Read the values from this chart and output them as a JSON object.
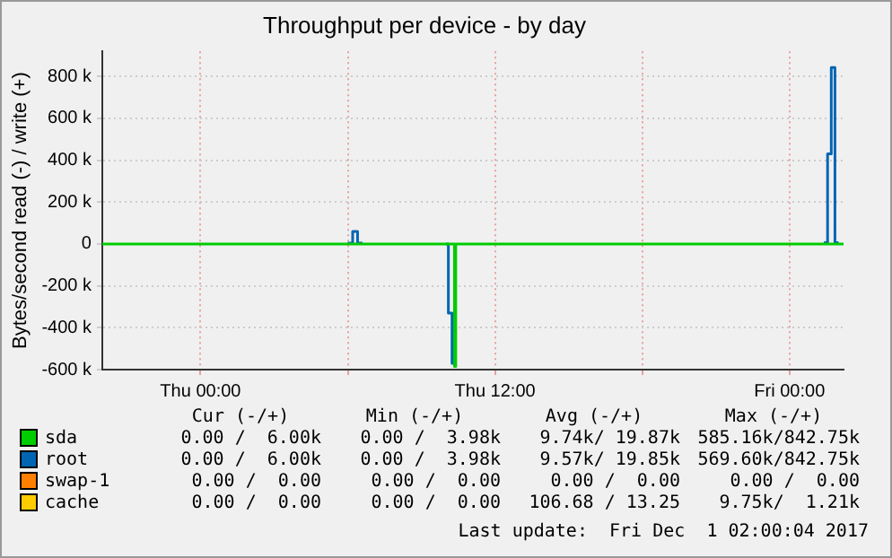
{
  "chart_data": {
    "type": "step",
    "title": "Throughput per device - by day",
    "ylabel": "Bytes/second read (-) / write (+)",
    "xlim": [
      "2017-11-29T20:00",
      "2017-12-01T02:12"
    ],
    "xticks": [
      {
        "value": "2017-11-30T00:00",
        "label": "Thu 00:00"
      },
      {
        "value": "2017-11-30T06:00",
        "label": null
      },
      {
        "value": "2017-11-30T12:00",
        "label": "Thu 12:00"
      },
      {
        "value": "2017-11-30T18:00",
        "label": null
      },
      {
        "value": "2017-12-01T00:00",
        "label": "Fri 00:00"
      }
    ],
    "ylim": [
      -600000,
      920000
    ],
    "yticks": [
      {
        "value": -600000,
        "label": "-600 k"
      },
      {
        "value": -400000,
        "label": "-400 k"
      },
      {
        "value": -200000,
        "label": "-200 k"
      },
      0,
      {
        "value": 200000,
        "label": "200 k"
      },
      {
        "value": 400000,
        "label": "400 k"
      },
      {
        "value": 600000,
        "label": "600 k"
      },
      {
        "value": 800000,
        "label": "800 k"
      }
    ],
    "grid": true,
    "legend": "bottom",
    "marker": "none",
    "series": [
      {
        "name": "sda",
        "color": "#00cc00",
        "x": [
          "2017-11-29T20:00",
          "2017-11-30T10:21",
          "2017-11-30T10:24",
          "2017-12-01T02:12"
        ],
        "values": [
          0,
          -585160,
          0,
          0
        ]
      },
      {
        "name": "root",
        "color": "#0066b3",
        "x": [
          "2017-11-30T10:00",
          "2017-11-30T10:06",
          "2017-11-30T10:15",
          "2017-11-30T10:21"
        ],
        "values": [
          0,
          -330000,
          -569600,
          0
        ]
      },
      {
        "name": "swap-1",
        "color": "#ff8000"
      },
      {
        "name": "cache",
        "color": "#ffcc00"
      },
      {
        "color": "#0066b3",
        "x": [
          "2017-11-30T06:00",
          "2017-11-30T06:12",
          "2017-11-30T06:24",
          "2017-11-30T06:36"
        ],
        "values": [
          4000,
          60000,
          4000,
          4000
        ]
      },
      {
        "color": "#0066b3",
        "x": [
          "2017-12-01T01:24",
          "2017-12-01T01:33",
          "2017-12-01T01:42",
          "2017-12-01T01:51",
          "2017-12-01T02:00"
        ],
        "values": [
          6000,
          430000,
          842750,
          6000,
          6000
        ]
      }
    ],
    "annotations": [
      "Cur (-/+)",
      "Min (-/+)",
      "Avg (-/+)",
      "Max (-/+)",
      "0.00 /  6.00k",
      "0.00 /  3.98k",
      "9.74k/ 19.87k",
      "585.16k/842.75k",
      "0.00 /  6.00k",
      "0.00 /  3.98k",
      "9.57k/ 19.85k",
      "569.60k/842.75k",
      "0.00 /  0.00",
      "0.00 /  0.00",
      "0.00 /  0.00",
      "0.00 /  0.00",
      "0.00 /  0.00",
      "0.00 /  0.00",
      "106.68 / 13.25",
      "9.75k/  1.21k",
      "Last update:  Fri Dec  1 02:00:04 2017"
    ]
  }
}
